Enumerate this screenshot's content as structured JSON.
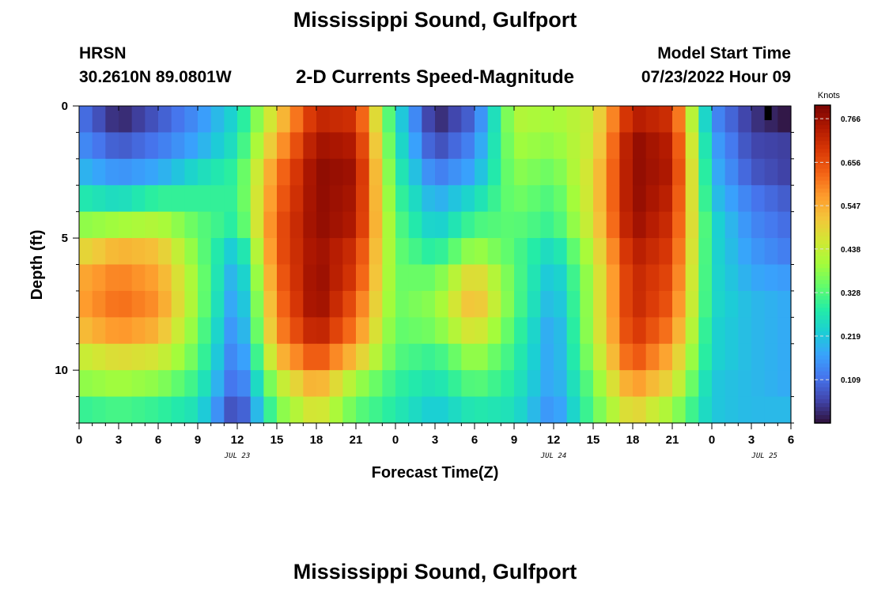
{
  "header": {
    "title": "Mississippi Sound, Gulfport",
    "station": "HRSN",
    "coords": "30.2610N  89.0801W",
    "subtitle": "2-D Currents Speed-Magnitude",
    "start_label": "Model Start Time",
    "start_value": "07/23/2022 Hour 09"
  },
  "footer": {
    "title": "Mississippi Sound, Gulfport"
  },
  "colormap": [
    "#30123b",
    "#4145ab",
    "#4675ed",
    "#39a2fc",
    "#1bcfd4",
    "#24eca6",
    "#61fc6c",
    "#a4fc3b",
    "#d1e834",
    "#f3c63a",
    "#fe9b2d",
    "#f36315",
    "#d93806",
    "#b11901",
    "#7a0403"
  ],
  "chart_data": {
    "type": "heatmap",
    "xlabel": "Forecast Time(Z)",
    "ylabel": "Depth (ft)",
    "x_tick_labels": [
      "0",
      "3",
      "6",
      "9",
      "12",
      "15",
      "18",
      "21",
      "0",
      "3",
      "6",
      "9",
      "12",
      "15",
      "18",
      "21",
      "0",
      "3",
      "6"
    ],
    "date_labels": [
      "JUL 23",
      "JUL 24",
      "JUL 25"
    ],
    "y_tick_labels": [
      "0",
      "5",
      "10"
    ],
    "ylim": [
      0,
      12
    ],
    "colorbar": {
      "label": "Knots",
      "min": 0.0,
      "max": 0.8,
      "ticks": [
        "0.766",
        "0.656",
        "0.547",
        "0.438",
        "0.328",
        "0.219",
        "0.109"
      ]
    },
    "depths_ft": [
      0.25,
      1.25,
      2.25,
      3.25,
      4.25,
      5.25,
      6.25,
      7.25,
      8.25,
      9.25,
      10.25,
      11.25
    ],
    "hours": [
      0,
      3,
      6,
      9,
      12,
      15,
      18,
      21,
      24,
      27,
      30,
      33,
      36,
      39,
      42,
      45,
      48,
      51,
      54
    ],
    "speed_knots": [
      [
        0.12,
        0.02,
        0.08,
        0.15,
        0.25,
        0.5,
        0.72,
        0.7,
        0.26,
        0.02,
        0.1,
        0.42,
        0.4,
        0.45,
        0.74,
        0.7,
        0.15,
        0.04,
        0.0
      ],
      [
        0.15,
        0.08,
        0.12,
        0.18,
        0.27,
        0.55,
        0.76,
        0.74,
        0.28,
        0.06,
        0.14,
        0.4,
        0.38,
        0.46,
        0.78,
        0.73,
        0.18,
        0.06,
        0.05
      ],
      [
        0.2,
        0.15,
        0.18,
        0.25,
        0.3,
        0.6,
        0.78,
        0.76,
        0.3,
        0.12,
        0.18,
        0.38,
        0.35,
        0.48,
        0.78,
        0.74,
        0.2,
        0.08,
        0.05
      ],
      [
        0.28,
        0.25,
        0.3,
        0.3,
        0.3,
        0.62,
        0.78,
        0.75,
        0.32,
        0.18,
        0.25,
        0.36,
        0.32,
        0.48,
        0.78,
        0.72,
        0.22,
        0.12,
        0.08
      ],
      [
        0.38,
        0.4,
        0.42,
        0.34,
        0.28,
        0.64,
        0.78,
        0.74,
        0.34,
        0.22,
        0.32,
        0.34,
        0.3,
        0.47,
        0.77,
        0.7,
        0.25,
        0.14,
        0.1
      ],
      [
        0.48,
        0.54,
        0.52,
        0.36,
        0.2,
        0.64,
        0.77,
        0.7,
        0.35,
        0.28,
        0.4,
        0.33,
        0.24,
        0.44,
        0.74,
        0.68,
        0.25,
        0.16,
        0.12
      ],
      [
        0.55,
        0.6,
        0.56,
        0.38,
        0.16,
        0.62,
        0.78,
        0.68,
        0.35,
        0.35,
        0.5,
        0.34,
        0.2,
        0.42,
        0.72,
        0.66,
        0.25,
        0.18,
        0.16
      ],
      [
        0.56,
        0.62,
        0.58,
        0.38,
        0.14,
        0.6,
        0.78,
        0.64,
        0.35,
        0.38,
        0.54,
        0.34,
        0.18,
        0.42,
        0.72,
        0.64,
        0.25,
        0.2,
        0.18
      ],
      [
        0.52,
        0.58,
        0.54,
        0.36,
        0.12,
        0.58,
        0.74,
        0.6,
        0.34,
        0.36,
        0.48,
        0.32,
        0.16,
        0.42,
        0.7,
        0.6,
        0.24,
        0.2,
        0.18
      ],
      [
        0.44,
        0.48,
        0.46,
        0.34,
        0.1,
        0.52,
        0.66,
        0.52,
        0.33,
        0.3,
        0.4,
        0.3,
        0.16,
        0.4,
        0.66,
        0.54,
        0.24,
        0.2,
        0.18
      ],
      [
        0.38,
        0.4,
        0.38,
        0.3,
        0.08,
        0.42,
        0.56,
        0.4,
        0.3,
        0.26,
        0.34,
        0.28,
        0.16,
        0.36,
        0.58,
        0.48,
        0.22,
        0.2,
        0.18
      ],
      [
        0.3,
        0.32,
        0.3,
        0.26,
        0.04,
        0.36,
        0.48,
        0.34,
        0.28,
        0.22,
        0.28,
        0.26,
        0.14,
        0.34,
        0.5,
        0.4,
        0.22,
        0.2,
        0.2
      ]
    ],
    "no_data_marker": {
      "hour": 52,
      "depth_ft": 0.25
    }
  }
}
